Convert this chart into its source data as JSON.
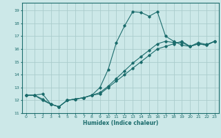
{
  "xlabel": "Humidex (Indice chaleur)",
  "xlim": [
    -0.5,
    23.5
  ],
  "ylim": [
    11,
    19.6
  ],
  "yticks": [
    11,
    12,
    13,
    14,
    15,
    16,
    17,
    18,
    19
  ],
  "xticks": [
    0,
    1,
    2,
    3,
    4,
    5,
    6,
    7,
    8,
    9,
    10,
    11,
    12,
    13,
    14,
    15,
    16,
    17,
    18,
    19,
    20,
    21,
    22,
    23
  ],
  "bg_color": "#cce8e8",
  "grid_color": "#aacccc",
  "line_color": "#1a6b6b",
  "line1_x": [
    0,
    1,
    2,
    3,
    4,
    5,
    6,
    7,
    8,
    9,
    10,
    11,
    12,
    13,
    14,
    15,
    16,
    17,
    18,
    19,
    20,
    21,
    22,
    23
  ],
  "line1_y": [
    12.4,
    12.4,
    12.5,
    11.7,
    11.5,
    12.0,
    12.1,
    12.2,
    12.4,
    13.0,
    14.4,
    16.5,
    17.8,
    18.9,
    18.85,
    18.55,
    18.9,
    17.0,
    16.6,
    16.3,
    16.2,
    16.5,
    16.35,
    16.6
  ],
  "line2_x": [
    0,
    1,
    2,
    3,
    4,
    5,
    6,
    7,
    8,
    9,
    10,
    11,
    12,
    13,
    14,
    15,
    16,
    17,
    18,
    19,
    20,
    21,
    22,
    23
  ],
  "line2_y": [
    12.4,
    12.4,
    12.0,
    11.7,
    11.5,
    12.0,
    12.1,
    12.2,
    12.4,
    12.5,
    13.0,
    13.5,
    14.0,
    14.5,
    15.0,
    15.5,
    16.0,
    16.2,
    16.4,
    16.6,
    16.2,
    16.4,
    16.3,
    16.6
  ],
  "line3_x": [
    0,
    1,
    2,
    3,
    4,
    5,
    6,
    7,
    8,
    9,
    10,
    11,
    12,
    13,
    14,
    15,
    16,
    17,
    18,
    19,
    20,
    21,
    22,
    23
  ],
  "line3_y": [
    12.4,
    12.4,
    12.1,
    11.7,
    11.5,
    12.0,
    12.1,
    12.2,
    12.4,
    12.6,
    13.1,
    13.7,
    14.3,
    14.9,
    15.4,
    15.9,
    16.4,
    16.6,
    16.5,
    16.5,
    16.2,
    16.4,
    16.3,
    16.6
  ]
}
